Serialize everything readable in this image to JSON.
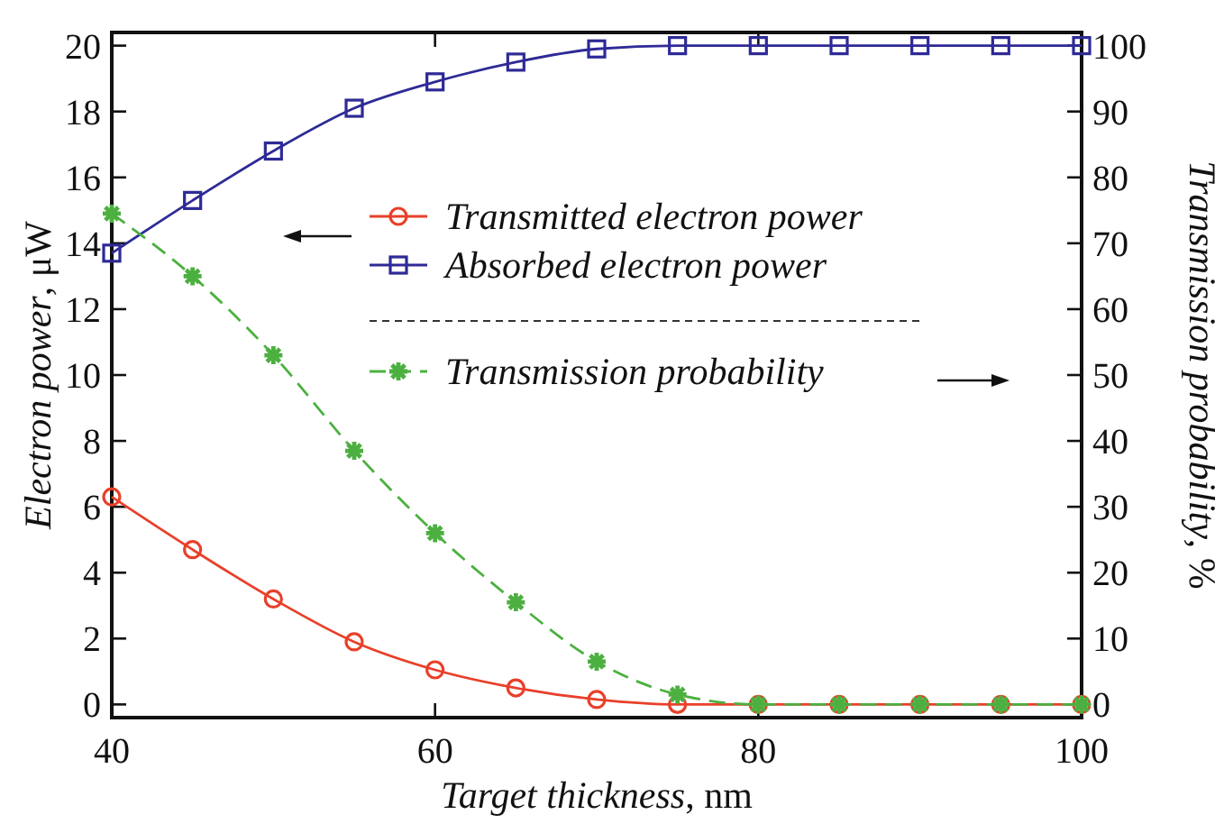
{
  "chart_data": {
    "type": "line",
    "xlabel": "Target thickness, nm",
    "ylabel": "Electron power, μW",
    "y2label": "Transmission probability, %",
    "x": [
      40,
      45,
      50,
      55,
      60,
      65,
      70,
      75,
      80,
      85,
      90,
      95,
      100
    ],
    "series": [
      {
        "name": "Transmitted electron power",
        "color": "#e8402a",
        "marker": "circle",
        "line_style": "solid",
        "values": [
          6.3,
          4.7,
          3.2,
          1.9,
          1.05,
          0.5,
          0.15,
          0,
          0,
          0,
          0,
          0,
          0
        ]
      },
      {
        "name": "Absorbed electron power",
        "color": "#2e2a96",
        "marker": "square",
        "line_style": "solid",
        "values": [
          13.7,
          15.3,
          16.8,
          18.1,
          18.9,
          19.5,
          19.9,
          20,
          20,
          20,
          20,
          20,
          20
        ]
      },
      {
        "name": "Transmission probability",
        "color": "#4cb040",
        "marker": "cross",
        "line_style": "dashed",
        "axis": "y2",
        "values": [
          74.5,
          65,
          53,
          38.5,
          26,
          15.5,
          6.5,
          1.5,
          0,
          0,
          0,
          0,
          0
        ]
      }
    ],
    "xlim": [
      40,
      100
    ],
    "xticks": [
      40,
      60,
      80,
      100
    ],
    "ylim": [
      -0.4,
      20.4
    ],
    "yticks": [
      0,
      2,
      4,
      6,
      8,
      10,
      12,
      14,
      16,
      18,
      20
    ],
    "y2lim": [
      -2,
      102
    ],
    "y2ticks": [
      0,
      10,
      20,
      30,
      40,
      50,
      60,
      70,
      80,
      90,
      100
    ],
    "grid": false,
    "legend": "right"
  }
}
